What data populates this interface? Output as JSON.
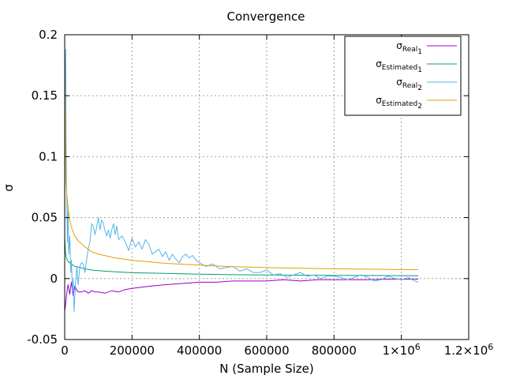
{
  "chart_data": {
    "type": "line",
    "title": "Convergence",
    "xlabel": "N (Sample Size)",
    "ylabel": "σ",
    "xlim": [
      0,
      1200000
    ],
    "ylim": [
      -0.05,
      0.2
    ],
    "grid": true,
    "legend_position": "top-right",
    "x_ticks": [
      {
        "value": 0,
        "label": "0"
      },
      {
        "value": 200000,
        "label": "200000"
      },
      {
        "value": 400000,
        "label": "400000"
      },
      {
        "value": 600000,
        "label": "600000"
      },
      {
        "value": 800000,
        "label": "800000"
      },
      {
        "value": 1000000,
        "label": "1×10",
        "sup": "6"
      },
      {
        "value": 1200000,
        "label": "1.2×10",
        "sup": "6"
      }
    ],
    "y_ticks": [
      {
        "value": -0.05,
        "label": "-0.05"
      },
      {
        "value": 0,
        "label": "0"
      },
      {
        "value": 0.05,
        "label": "0.05"
      },
      {
        "value": 0.1,
        "label": "0.1"
      },
      {
        "value": 0.15,
        "label": "0.15"
      },
      {
        "value": 0.2,
        "label": "0.2"
      }
    ],
    "series": [
      {
        "name": "σReal1",
        "legend_main": "σ",
        "legend_sub1": "Real",
        "legend_sub2": "1",
        "color": "#9400d3",
        "x": [
          0,
          3000,
          6000,
          10000,
          15000,
          20000,
          25000,
          30000,
          35000,
          40000,
          50000,
          60000,
          70000,
          80000,
          90000,
          100000,
          120000,
          140000,
          160000,
          180000,
          200000,
          230000,
          260000,
          300000,
          350000,
          400000,
          450000,
          500000,
          550000,
          600000,
          650000,
          700000,
          750000,
          800000,
          850000,
          900000,
          950000,
          1000000,
          1050000
        ],
        "y": [
          -0.027,
          -0.02,
          -0.012,
          -0.005,
          -0.013,
          -0.003,
          -0.014,
          -0.006,
          -0.009,
          -0.011,
          -0.011,
          -0.01,
          -0.012,
          -0.01,
          -0.011,
          -0.011,
          -0.012,
          -0.01,
          -0.011,
          -0.009,
          -0.008,
          -0.007,
          -0.006,
          -0.005,
          -0.004,
          -0.003,
          -0.003,
          -0.002,
          -0.002,
          -0.002,
          -0.001,
          -0.002,
          -0.001,
          -0.001,
          -0.001,
          -0.001,
          -0.0005,
          -0.0005,
          -0.0005
        ]
      },
      {
        "name": "σEstimated1",
        "legend_main": "σ",
        "legend_sub1": "Estimated",
        "legend_sub2": "1",
        "color": "#009e73",
        "x": [
          0,
          2000,
          5000,
          10000,
          20000,
          30000,
          40000,
          60000,
          80000,
          100000,
          150000,
          200000,
          300000,
          400000,
          500000,
          600000,
          700000,
          800000,
          900000,
          1000000,
          1050000
        ],
        "y": [
          0.034,
          0.022,
          0.017,
          0.014,
          0.012,
          0.01,
          0.0095,
          0.008,
          0.007,
          0.0065,
          0.0055,
          0.0048,
          0.0042,
          0.0036,
          0.0032,
          0.003,
          0.0028,
          0.0026,
          0.0025,
          0.0024,
          0.0023
        ]
      },
      {
        "name": "σReal2",
        "legend_main": "σ",
        "legend_sub1": "Real",
        "legend_sub2": "2",
        "color": "#56b4e9",
        "x": [
          0,
          1500,
          3000,
          5000,
          8000,
          10000,
          12000,
          15000,
          18000,
          20000,
          23000,
          25000,
          28000,
          30000,
          33000,
          36000,
          40000,
          45000,
          50000,
          55000,
          60000,
          65000,
          70000,
          75000,
          80000,
          85000,
          90000,
          95000,
          100000,
          105000,
          110000,
          115000,
          120000,
          125000,
          130000,
          135000,
          140000,
          145000,
          150000,
          155000,
          160000,
          170000,
          180000,
          190000,
          200000,
          210000,
          220000,
          230000,
          240000,
          250000,
          260000,
          270000,
          280000,
          290000,
          300000,
          310000,
          320000,
          330000,
          340000,
          350000,
          360000,
          370000,
          380000,
          390000,
          400000,
          420000,
          440000,
          460000,
          480000,
          500000,
          520000,
          540000,
          560000,
          580000,
          600000,
          620000,
          640000,
          660000,
          680000,
          700000,
          720000,
          740000,
          760000,
          780000,
          800000,
          820000,
          840000,
          860000,
          880000,
          900000,
          920000,
          940000,
          960000,
          980000,
          1000000,
          1020000,
          1040000,
          1050000
        ],
        "y": [
          0.03,
          0.16,
          0.188,
          0.09,
          0.03,
          0.06,
          0.02,
          0.035,
          0.005,
          0.015,
          -0.01,
          -0.001,
          -0.027,
          -0.015,
          -0.001,
          0.01,
          -0.005,
          0.01,
          0.013,
          0.012,
          0.005,
          0.015,
          0.025,
          0.03,
          0.045,
          0.043,
          0.036,
          0.042,
          0.05,
          0.04,
          0.048,
          0.045,
          0.039,
          0.035,
          0.04,
          0.033,
          0.04,
          0.045,
          0.036,
          0.043,
          0.032,
          0.035,
          0.03,
          0.023,
          0.033,
          0.026,
          0.03,
          0.024,
          0.032,
          0.028,
          0.02,
          0.022,
          0.024,
          0.018,
          0.022,
          0.015,
          0.02,
          0.016,
          0.013,
          0.018,
          0.02,
          0.017,
          0.019,
          0.015,
          0.013,
          0.01,
          0.012,
          0.008,
          0.009,
          0.01,
          0.006,
          0.008,
          0.005,
          0.005,
          0.007,
          0.003,
          0.004,
          0.001,
          0.003,
          0.005,
          0.002,
          0.003,
          0.0,
          0.002,
          0.002,
          0.001,
          -0.001,
          0.001,
          0.003,
          0.001,
          -0.002,
          -0.001,
          0.002,
          0.0,
          -0.001,
          0.001,
          -0.002,
          -0.003
        ]
      },
      {
        "name": "σEstimated2",
        "legend_main": "σ",
        "legend_sub1": "Estimated",
        "legend_sub2": "2",
        "color": "#e69f00",
        "x": [
          0,
          1000,
          2000,
          4000,
          6000,
          10000,
          15000,
          20000,
          30000,
          40000,
          60000,
          80000,
          100000,
          150000,
          200000,
          300000,
          400000,
          500000,
          600000,
          700000,
          800000,
          900000,
          1000000,
          1050000
        ],
        "y": [
          0.197,
          0.15,
          0.11,
          0.08,
          0.07,
          0.058,
          0.048,
          0.042,
          0.035,
          0.031,
          0.026,
          0.022,
          0.02,
          0.017,
          0.015,
          0.0125,
          0.011,
          0.0098,
          0.009,
          0.0085,
          0.008,
          0.0077,
          0.0074,
          0.0073
        ]
      }
    ]
  }
}
